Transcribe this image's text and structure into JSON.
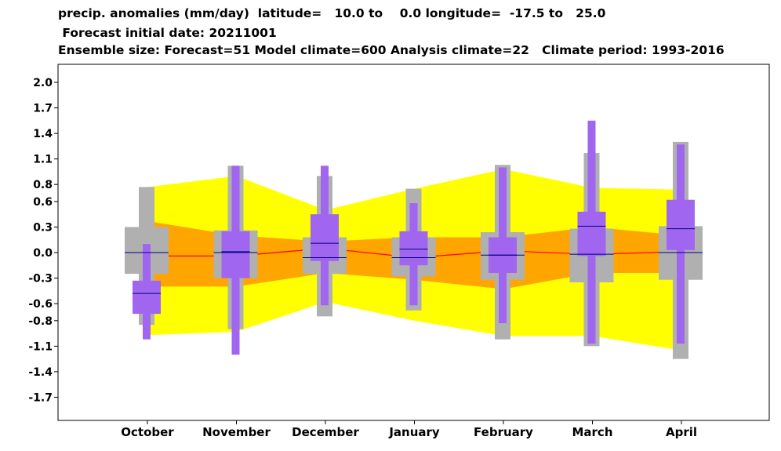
{
  "title": {
    "line1": "precip. anomalies (mm/day)  latitude=   10.0 to    0.0 longitude=  -17.5 to   25.0",
    "line2": " Forecast initial date: 20211001",
    "line3": "Ensemble size: Forecast=51 Model climate=600 Analysis climate=22   Climate period: 1993-2016"
  },
  "chart_data": {
    "type": "box",
    "categories": [
      "October",
      "November",
      "December",
      "January",
      "February",
      "March",
      "April"
    ],
    "ylim": [
      -1.9,
      2.1
    ],
    "yticks": [
      -1.7,
      -1.4,
      -1.1,
      -0.8,
      -0.6,
      -0.3,
      0.0,
      0.3,
      0.6,
      0.8,
      1.1,
      1.4,
      1.7,
      2.0
    ],
    "grid": false,
    "colors": {
      "outer_band": "#ffff00",
      "inner_band": "#ffa500",
      "climate_box": "#b0b0b0",
      "forecast_box": "#a066f0",
      "median_line_climate": "#ff0000",
      "median_line_forecast": "#000080"
    },
    "climate_bands": {
      "outer_low": [
        -0.97,
        -0.93,
        -0.58,
        -0.8,
        -0.98,
        -0.98,
        -1.15
      ],
      "outer_high": [
        0.77,
        0.9,
        0.5,
        0.75,
        0.98,
        0.76,
        0.74
      ],
      "inner_low": [
        -0.4,
        -0.4,
        -0.24,
        -0.32,
        -0.43,
        -0.24,
        -0.24
      ],
      "inner_high": [
        0.37,
        0.2,
        0.13,
        0.18,
        0.18,
        0.3,
        0.2
      ],
      "median": [
        -0.04,
        -0.04,
        0.05,
        -0.06,
        0.02,
        -0.02,
        0.01
      ]
    },
    "model_climate": {
      "min": [
        -0.85,
        -0.9,
        -0.75,
        -0.68,
        -1.02,
        -1.1,
        -1.25
      ],
      "q25": [
        -0.25,
        -0.3,
        -0.25,
        -0.28,
        -0.32,
        -0.35,
        -0.32
      ],
      "median": [
        0.0,
        0.0,
        -0.06,
        -0.06,
        -0.03,
        -0.02,
        0.0
      ],
      "q75": [
        0.3,
        0.26,
        0.18,
        0.18,
        0.24,
        0.28,
        0.31
      ],
      "max": [
        0.77,
        1.02,
        0.9,
        0.75,
        1.03,
        1.17,
        1.3
      ]
    },
    "forecast": {
      "min": [
        -1.02,
        -1.2,
        -0.62,
        -0.62,
        -0.83,
        -1.07,
        -1.07
      ],
      "q25": [
        -0.72,
        -0.3,
        -0.1,
        -0.15,
        -0.24,
        -0.04,
        0.03
      ],
      "median": [
        -0.48,
        0.01,
        0.11,
        0.04,
        -0.03,
        0.31,
        0.28
      ],
      "q75": [
        -0.33,
        0.25,
        0.45,
        0.25,
        0.18,
        0.48,
        0.62
      ],
      "max": [
        0.1,
        1.02,
        1.02,
        0.58,
        1.0,
        1.55,
        1.27
      ]
    }
  }
}
